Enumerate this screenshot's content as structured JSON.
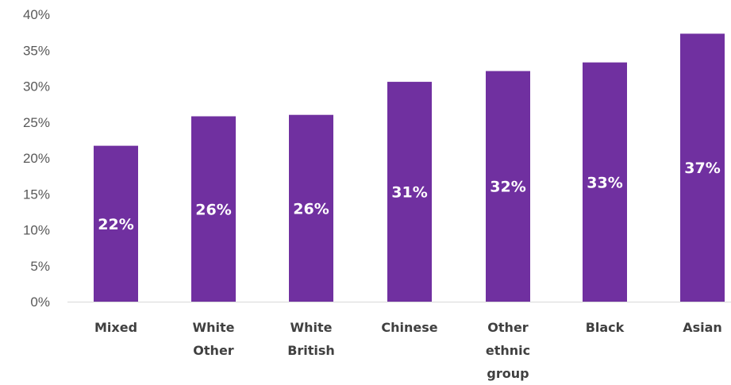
{
  "chart_data": {
    "type": "bar",
    "categories": [
      [
        "Mixed"
      ],
      [
        "White",
        "Other"
      ],
      [
        "White",
        "British"
      ],
      [
        "Chinese"
      ],
      [
        "Other",
        "ethnic",
        "group"
      ],
      [
        "Black"
      ],
      [
        "Asian"
      ]
    ],
    "values": [
      21.7,
      25.8,
      26.0,
      30.6,
      32.1,
      33.3,
      37.3
    ],
    "data_labels": [
      "22%",
      "26%",
      "26%",
      "31%",
      "32%",
      "33%",
      "37%"
    ],
    "y_ticks": [
      "0%",
      "5%",
      "10%",
      "15%",
      "20%",
      "25%",
      "30%",
      "35%",
      "40%"
    ],
    "ylim": [
      0,
      40
    ],
    "bar_color": "#7030A0",
    "grid": false,
    "legend": "none"
  }
}
